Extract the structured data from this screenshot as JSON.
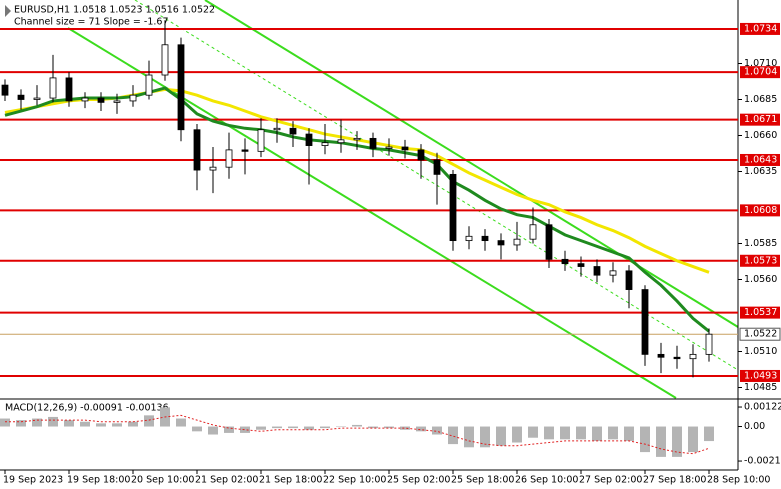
{
  "chart_data": [
    {
      "type": "candlestick",
      "title": "EURUSD,H1  1.0518 1.0523 1.0516 1.0522",
      "subtitle": "Channel size = 71 Slope = -1.67",
      "categories": [
        "19 Sep 2023",
        null,
        null,
        null,
        "19 Sep 18:00",
        null,
        null,
        null,
        "20 Sep 10:00",
        null,
        null,
        null,
        "21 Sep 02:00",
        null,
        null,
        null,
        "21 Sep 18:00",
        null,
        null,
        null,
        "22 Sep 10:00",
        null,
        null,
        null,
        "25 Sep 02:00",
        null,
        null,
        null,
        "25 Sep 18:00",
        null,
        null,
        null,
        "26 Sep 10:00",
        null,
        null,
        null,
        "27 Sep 02:00",
        null,
        null,
        null,
        "27 Sep 18:00",
        null,
        null,
        null,
        "28 Sep 10:00"
      ],
      "open": [
        1.0695,
        1.0688,
        1.0685,
        1.0686,
        1.07,
        1.0684,
        1.0686,
        1.0683,
        1.0684,
        1.0688,
        1.0702,
        1.0723,
        1.0664,
        1.0636,
        1.0638,
        1.065,
        1.0649,
        1.0664,
        1.0665,
        1.0661,
        1.0653,
        1.0655,
        1.0657,
        1.0658,
        1.0651,
        1.0652,
        1.065,
        1.0643,
        1.0633,
        1.0587,
        1.059,
        1.0587,
        1.0584,
        1.0588,
        1.0598,
        1.0574,
        1.0571,
        1.0569,
        1.0563,
        1.0566,
        1.0553,
        1.0508,
        1.0506,
        1.0505,
        1.0508
      ],
      "high": [
        1.0699,
        1.0692,
        1.0695,
        1.0716,
        1.0704,
        1.069,
        1.069,
        1.0689,
        1.0695,
        1.0712,
        1.074,
        1.0728,
        1.0668,
        1.0652,
        1.0662,
        1.0658,
        1.0672,
        1.0672,
        1.067,
        1.0665,
        1.0668,
        1.0671,
        1.0663,
        1.0662,
        1.0658,
        1.0657,
        1.0654,
        1.0648,
        1.0636,
        1.0597,
        1.0595,
        1.0592,
        1.06,
        1.061,
        1.0602,
        1.058,
        1.0576,
        1.0574,
        1.0572,
        1.057,
        1.0556,
        1.0516,
        1.0514,
        1.0515,
        1.0526
      ],
      "low": [
        1.0684,
        1.0678,
        1.0681,
        1.0683,
        1.068,
        1.0679,
        1.0677,
        1.0675,
        1.068,
        1.0685,
        1.0698,
        1.0656,
        1.0622,
        1.062,
        1.063,
        1.0633,
        1.0645,
        1.0655,
        1.0652,
        1.0626,
        1.0647,
        1.0648,
        1.065,
        1.0645,
        1.0646,
        1.0644,
        1.063,
        1.0612,
        1.058,
        1.0581,
        1.058,
        1.0574,
        1.058,
        1.0585,
        1.0568,
        1.0566,
        1.0562,
        1.0558,
        1.0558,
        1.054,
        1.05,
        1.0495,
        1.0498,
        1.0492,
        1.0503
      ],
      "close": [
        1.0688,
        1.0685,
        1.0686,
        1.07,
        1.0684,
        1.0686,
        1.0683,
        1.0684,
        1.0688,
        1.0702,
        1.0723,
        1.0664,
        1.0636,
        1.0638,
        1.065,
        1.0649,
        1.0664,
        1.0665,
        1.0661,
        1.0653,
        1.0655,
        1.0657,
        1.0658,
        1.0651,
        1.0652,
        1.065,
        1.0643,
        1.0633,
        1.0587,
        1.059,
        1.0587,
        1.0584,
        1.0588,
        1.0598,
        1.0574,
        1.0571,
        1.0569,
        1.0563,
        1.0566,
        1.0553,
        1.0508,
        1.0506,
        1.0505,
        1.0508,
        1.0522
      ],
      "series": [
        {
          "color": "#f2e600",
          "values": [
            1.0676,
            1.0678,
            1.068,
            1.0682,
            1.0684,
            1.0685,
            1.0685,
            1.0686,
            1.0688,
            1.069,
            1.0692,
            1.0691,
            1.0688,
            1.0684,
            1.0681,
            1.0677,
            1.0673,
            1.067,
            1.0667,
            1.0664,
            1.0661,
            1.0659,
            1.0657,
            1.0655,
            1.0653,
            1.0651,
            1.065,
            1.0646,
            1.064,
            1.0634,
            1.0629,
            1.0624,
            1.0619,
            1.0615,
            1.0612,
            1.0607,
            1.0603,
            1.0598,
            1.0594,
            1.0589,
            1.0583,
            1.0578,
            1.0573,
            1.0569,
            1.0565
          ]
        },
        {
          "color": "#1f8a1f",
          "values": [
            1.0674,
            1.0677,
            1.068,
            1.0684,
            1.0685,
            1.0686,
            1.0686,
            1.0686,
            1.0687,
            1.069,
            1.0693,
            1.0685,
            1.0675,
            1.067,
            1.0667,
            1.0665,
            1.0664,
            1.0662,
            1.0659,
            1.0657,
            1.0656,
            1.0655,
            1.0653,
            1.0651,
            1.065,
            1.0648,
            1.0646,
            1.064,
            1.0628,
            1.0622,
            1.0615,
            1.0609,
            1.0605,
            1.0603,
            1.0597,
            1.0591,
            1.0587,
            1.0583,
            1.0579,
            1.0575,
            1.0565,
            1.0556,
            1.0545,
            1.0533,
            1.0524
          ]
        }
      ],
      "ylim": [
        1.04777,
        1.07541
      ],
      "yticks": [
        {
          "value": 1.071,
          "label": "1.0710"
        },
        1.0685,
        {
          "value": 1.066,
          "label": "1.0660"
        },
        1.0635,
        1.0585,
        {
          "value": 1.056,
          "label": "1.0560"
        },
        {
          "value": 1.051,
          "label": "1.0510"
        },
        1.0485
      ],
      "levels": [
        1.0734,
        1.0704,
        1.0671,
        1.0643,
        1.0608,
        1.0573,
        1.0537,
        1.0493
      ],
      "level_color": "#e00000",
      "last_price": 1.0522
    },
    {
      "type": "macd",
      "title": "MACD(12,26,9) -0.00091 -0.00136",
      "values": [
        0.0005,
        0.0004,
        0.0005,
        0.0006,
        0.0004,
        0.0003,
        0.0002,
        0.0002,
        0.0003,
        0.0007,
        0.0012,
        0.0005,
        -0.0003,
        -0.0005,
        -0.0004,
        -0.0004,
        -0.0002,
        -0.0001,
        -0.0001,
        -0.0002,
        -0.0001,
        0,
        0.0001,
        -0.0001,
        -0.0001,
        -0.0002,
        -0.0003,
        -0.0005,
        -0.0011,
        -0.0013,
        -0.0013,
        -0.0012,
        -0.001,
        -0.0007,
        -0.0008,
        -0.0008,
        -0.0008,
        -0.0009,
        -0.0008,
        -0.0009,
        -0.0016,
        -0.0019,
        -0.0019,
        -0.0016,
        -0.00091
      ],
      "color": "#b4b4b4",
      "signal": [
        0.0003,
        0.0003,
        0.0004,
        0.0004,
        0.0004,
        0.0004,
        0.0003,
        0.0003,
        0.0003,
        0.0004,
        0.0006,
        0.0007,
        0.0004,
        0.0001,
        -0.0001,
        -0.0002,
        -0.0003,
        -0.0002,
        -0.0002,
        -0.0002,
        -0.0002,
        -0.0001,
        -0.0001,
        -0.0001,
        -0.0001,
        -0.0001,
        -0.0002,
        -0.0003,
        -0.0006,
        -0.0009,
        -0.0011,
        -0.0012,
        -0.0012,
        -0.0011,
        -0.001,
        -0.0009,
        -0.0009,
        -0.0009,
        -0.0009,
        -0.0009,
        -0.0011,
        -0.0014,
        -0.0016,
        -0.0017,
        -0.00136
      ],
      "signal_color": "#e02020",
      "ylim": [
        -0.00272,
        0.00166
      ],
      "yticks": [
        0.00122,
        {
          "value": 0,
          "label": "0.00"
        },
        -0.00216
      ]
    }
  ]
}
